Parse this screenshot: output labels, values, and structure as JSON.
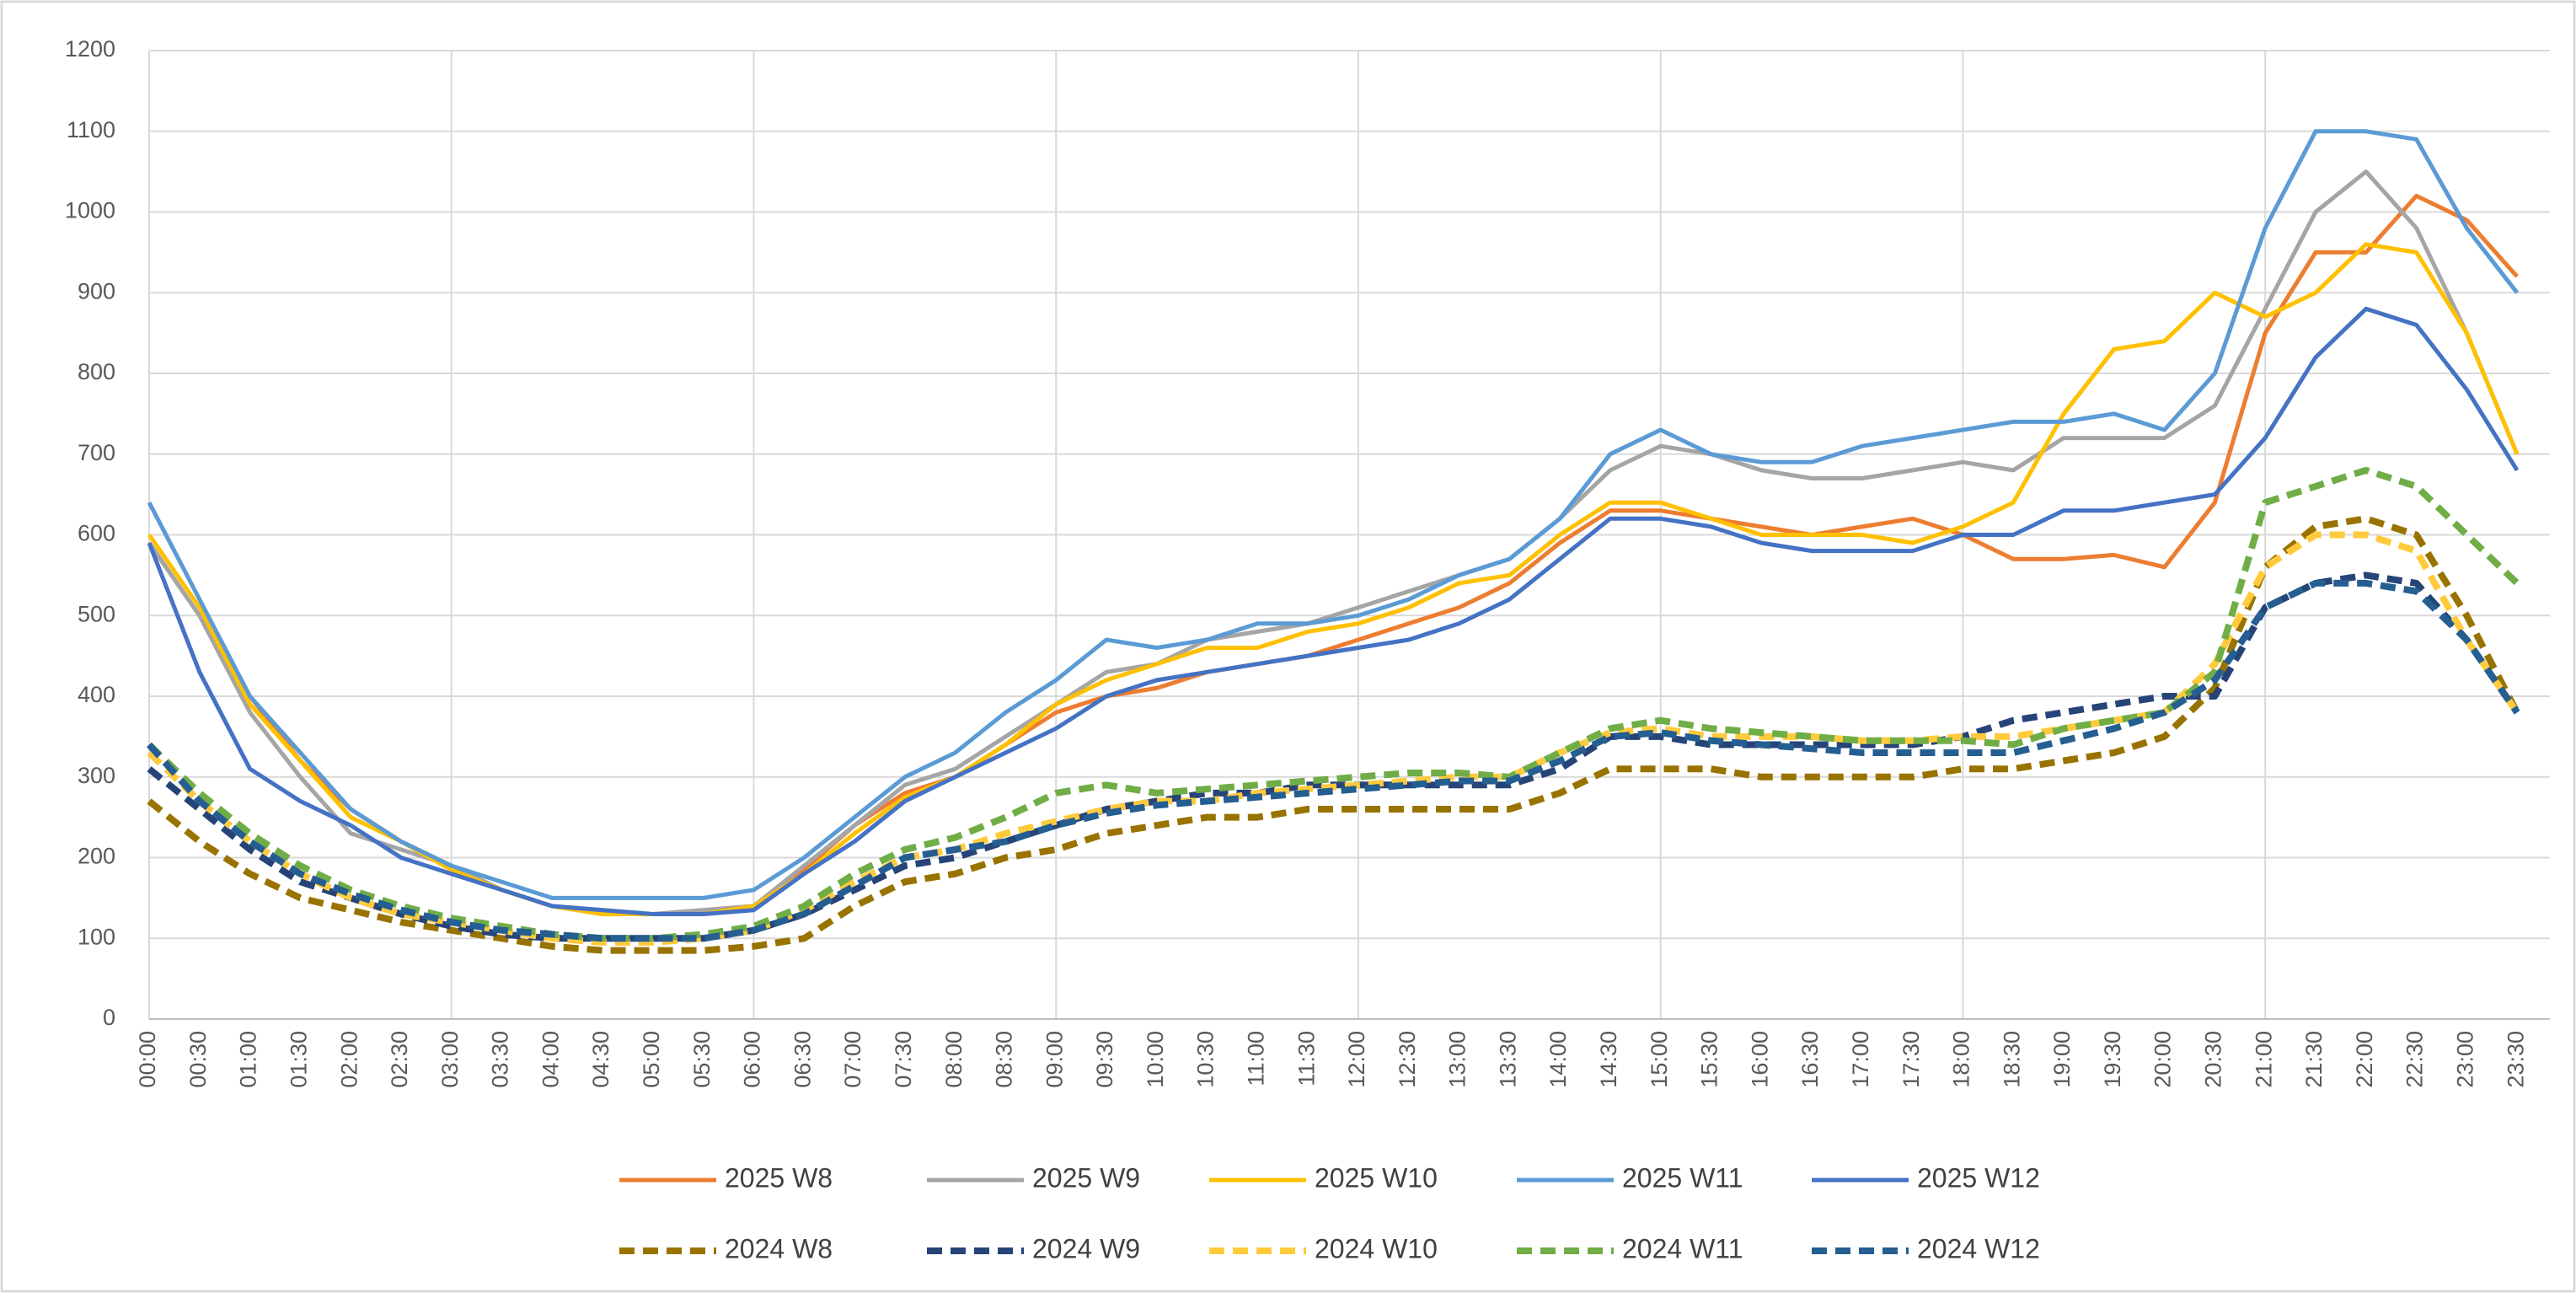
{
  "chart_data": {
    "type": "line",
    "categories": [
      "00:00",
      "00:30",
      "01:00",
      "01:30",
      "02:00",
      "02:30",
      "03:00",
      "03:30",
      "04:00",
      "04:30",
      "05:00",
      "05:30",
      "06:00",
      "06:30",
      "07:00",
      "07:30",
      "08:00",
      "08:30",
      "09:00",
      "09:30",
      "10:00",
      "10:30",
      "11:00",
      "11:30",
      "12:00",
      "12:30",
      "13:00",
      "13:30",
      "14:00",
      "14:30",
      "15:00",
      "15:30",
      "16:00",
      "16:30",
      "17:00",
      "17:30",
      "18:00",
      "18:30",
      "19:00",
      "19:30",
      "20:00",
      "20:30",
      "21:00",
      "21:30",
      "22:00",
      "22:30",
      "23:00",
      "23:30"
    ],
    "ylim": [
      0,
      1200
    ],
    "yticks": [
      0,
      100,
      200,
      300,
      400,
      500,
      600,
      700,
      800,
      900,
      1000,
      1100,
      1200
    ],
    "grid": true,
    "series": [
      {
        "name": "2025 W8",
        "color": "#ed7d31",
        "dashed": false,
        "values": [
          590,
          500,
          400,
          320,
          260,
          220,
          190,
          160,
          140,
          130,
          130,
          135,
          140,
          185,
          240,
          280,
          300,
          340,
          380,
          400,
          410,
          430,
          440,
          450,
          470,
          490,
          510,
          540,
          590,
          630,
          630,
          620,
          610,
          600,
          610,
          620,
          600,
          570,
          570,
          575,
          560,
          640,
          850,
          950,
          950,
          1020,
          990,
          920
        ]
      },
      {
        "name": "2025 W9",
        "color": "#a5a5a5",
        "dashed": false,
        "values": [
          590,
          500,
          380,
          300,
          230,
          210,
          190,
          160,
          140,
          135,
          130,
          135,
          140,
          190,
          240,
          290,
          310,
          350,
          390,
          430,
          440,
          470,
          480,
          490,
          510,
          530,
          550,
          570,
          620,
          680,
          710,
          700,
          680,
          670,
          670,
          680,
          690,
          680,
          720,
          720,
          720,
          760,
          880,
          1000,
          1050,
          980,
          850,
          700
        ]
      },
      {
        "name": "2025 W10",
        "color": "#ffc000",
        "dashed": false,
        "values": [
          600,
          510,
          390,
          320,
          250,
          220,
          185,
          160,
          140,
          130,
          130,
          130,
          140,
          180,
          230,
          275,
          300,
          340,
          390,
          420,
          440,
          460,
          460,
          480,
          490,
          510,
          540,
          550,
          600,
          640,
          640,
          620,
          600,
          600,
          600,
          590,
          610,
          640,
          750,
          830,
          840,
          900,
          870,
          900,
          960,
          950,
          850,
          700
        ]
      },
      {
        "name": "2025 W11",
        "color": "#5b9bd5",
        "dashed": false,
        "values": [
          640,
          520,
          400,
          330,
          260,
          220,
          190,
          170,
          150,
          150,
          150,
          150,
          160,
          200,
          250,
          300,
          330,
          380,
          420,
          470,
          460,
          470,
          490,
          490,
          500,
          520,
          550,
          570,
          620,
          700,
          730,
          700,
          690,
          690,
          710,
          720,
          730,
          740,
          740,
          750,
          730,
          800,
          980,
          1100,
          1100,
          1090,
          980,
          900
        ]
      },
      {
        "name": "2025 W12",
        "color": "#4472c4",
        "dashed": false,
        "values": [
          590,
          430,
          310,
          270,
          240,
          200,
          180,
          160,
          140,
          135,
          130,
          130,
          135,
          180,
          220,
          270,
          300,
          330,
          360,
          400,
          420,
          430,
          440,
          450,
          460,
          470,
          490,
          520,
          570,
          620,
          620,
          610,
          590,
          580,
          580,
          580,
          600,
          600,
          630,
          630,
          640,
          650,
          720,
          820,
          880,
          860,
          780,
          680
        ]
      },
      {
        "name": "2024 W8",
        "color": "#997300",
        "dashed": true,
        "values": [
          270,
          220,
          180,
          150,
          135,
          120,
          110,
          100,
          90,
          85,
          85,
          85,
          90,
          100,
          140,
          170,
          180,
          200,
          210,
          230,
          240,
          250,
          250,
          260,
          260,
          260,
          260,
          260,
          280,
          310,
          310,
          310,
          300,
          300,
          300,
          300,
          310,
          310,
          320,
          330,
          350,
          410,
          560,
          610,
          620,
          600,
          500,
          380
        ]
      },
      {
        "name": "2024 W9",
        "color": "#264478",
        "dashed": true,
        "values": [
          310,
          260,
          210,
          170,
          150,
          130,
          115,
          105,
          100,
          100,
          100,
          100,
          110,
          130,
          160,
          190,
          200,
          220,
          240,
          260,
          270,
          280,
          280,
          290,
          290,
          290,
          290,
          290,
          310,
          350,
          350,
          340,
          340,
          340,
          340,
          340,
          350,
          370,
          380,
          390,
          400,
          400,
          510,
          540,
          550,
          540,
          470,
          380
        ]
      },
      {
        "name": "2024 W10",
        "color": "#ffcb3d",
        "dashed": true,
        "values": [
          330,
          270,
          220,
          180,
          150,
          130,
          120,
          110,
          100,
          95,
          95,
          100,
          110,
          135,
          170,
          200,
          210,
          230,
          245,
          260,
          270,
          270,
          280,
          285,
          290,
          295,
          300,
          300,
          330,
          355,
          360,
          350,
          350,
          350,
          345,
          345,
          350,
          350,
          360,
          370,
          380,
          440,
          560,
          600,
          600,
          580,
          470,
          380
        ]
      },
      {
        "name": "2024 W11",
        "color": "#70ad47",
        "dashed": true,
        "values": [
          340,
          280,
          230,
          190,
          160,
          140,
          125,
          115,
          105,
          100,
          100,
          105,
          115,
          140,
          180,
          210,
          225,
          250,
          280,
          290,
          280,
          285,
          290,
          295,
          300,
          305,
          305,
          300,
          330,
          360,
          370,
          360,
          355,
          350,
          345,
          345,
          345,
          340,
          360,
          370,
          380,
          430,
          640,
          660,
          680,
          660,
          600,
          540
        ]
      },
      {
        "name": "2024 W12",
        "color": "#255e91",
        "dashed": true,
        "values": [
          340,
          270,
          220,
          180,
          155,
          135,
          120,
          110,
          105,
          100,
          100,
          100,
          110,
          130,
          165,
          200,
          210,
          220,
          240,
          255,
          265,
          270,
          275,
          280,
          285,
          290,
          295,
          295,
          320,
          350,
          355,
          345,
          340,
          335,
          330,
          330,
          330,
          330,
          345,
          360,
          380,
          420,
          510,
          540,
          540,
          530,
          470,
          380
        ]
      }
    ]
  }
}
